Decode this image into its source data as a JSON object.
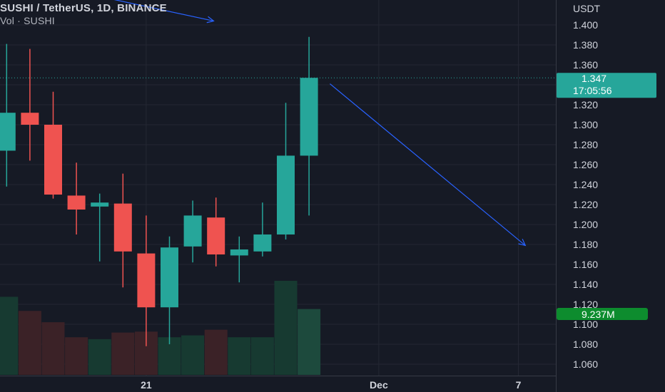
{
  "header": {
    "symbol": "SUSHI / TetherUS, 1D, BINANCE",
    "indicator": "Vol · SUSHI"
  },
  "colors": {
    "bg": "#161a25",
    "grid": "#242733",
    "up": "#26a69a",
    "down": "#ef5350",
    "vol_up": "#173a31",
    "vol_down": "#3b2227",
    "vol_last": "#1d4a3d",
    "arrow": "#2962ff",
    "price_badge": "#26a69a",
    "vol_badge": "#0d8c2e"
  },
  "chart_data": {
    "type": "candlestick",
    "y_axis_label": "USDT",
    "ylim": [
      1.05,
      1.415
    ],
    "y_ticks": [
      1.06,
      1.08,
      1.1,
      1.12,
      1.14,
      1.16,
      1.18,
      1.2,
      1.22,
      1.24,
      1.26,
      1.28,
      1.3,
      1.32,
      1.34,
      1.36,
      1.38,
      1.4
    ],
    "y_tick_labels": [
      "1.060",
      "1.080",
      "1.100",
      "1.120",
      "1.140",
      "1.160",
      "1.180",
      "1.200",
      "1.220",
      "1.240",
      "1.260",
      "1.280",
      "1.300",
      "1.320",
      "1.340",
      "1.360",
      "1.380",
      "1.400"
    ],
    "x_labels": [
      {
        "label": "21",
        "index": 6
      },
      {
        "label": "Dec",
        "index": 16
      },
      {
        "label": "7",
        "index": 22
      }
    ],
    "candles": [
      {
        "o": 1.274,
        "h": 1.381,
        "l": 1.238,
        "c": 1.312
      },
      {
        "o": 1.312,
        "h": 1.376,
        "l": 1.264,
        "c": 1.3
      },
      {
        "o": 1.3,
        "h": 1.333,
        "l": 1.226,
        "c": 1.23
      },
      {
        "o": 1.229,
        "h": 1.262,
        "l": 1.19,
        "c": 1.215
      },
      {
        "o": 1.218,
        "h": 1.231,
        "l": 1.163,
        "c": 1.222
      },
      {
        "o": 1.221,
        "h": 1.251,
        "l": 1.137,
        "c": 1.173
      },
      {
        "o": 1.171,
        "h": 1.209,
        "l": 1.078,
        "c": 1.117
      },
      {
        "o": 1.117,
        "h": 1.188,
        "l": 1.08,
        "c": 1.177
      },
      {
        "o": 1.178,
        "h": 1.224,
        "l": 1.162,
        "c": 1.209
      },
      {
        "o": 1.207,
        "h": 1.227,
        "l": 1.158,
        "c": 1.17
      },
      {
        "o": 1.169,
        "h": 1.188,
        "l": 1.142,
        "c": 1.175
      },
      {
        "o": 1.173,
        "h": 1.222,
        "l": 1.168,
        "c": 1.19
      },
      {
        "o": 1.19,
        "h": 1.322,
        "l": 1.185,
        "c": 1.269
      },
      {
        "o": 1.269,
        "h": 1.388,
        "l": 1.209,
        "c": 1.347
      }
    ],
    "volume_relative": [
      0.83,
      0.68,
      0.56,
      0.4,
      0.38,
      0.45,
      0.46,
      0.4,
      0.42,
      0.48,
      0.4,
      0.4,
      1.0,
      0.7
    ],
    "last_price": "1.347",
    "countdown": "17:05:56",
    "last_volume": "9.237M",
    "arrows": [
      {
        "from": {
          "index": -0.5,
          "price": 1.451
        },
        "to": {
          "index": 8.9,
          "price": 1.404
        }
      },
      {
        "from": {
          "index": 13.9,
          "price": 1.341
        },
        "to": {
          "index": 22.3,
          "price": 1.179
        }
      }
    ]
  }
}
